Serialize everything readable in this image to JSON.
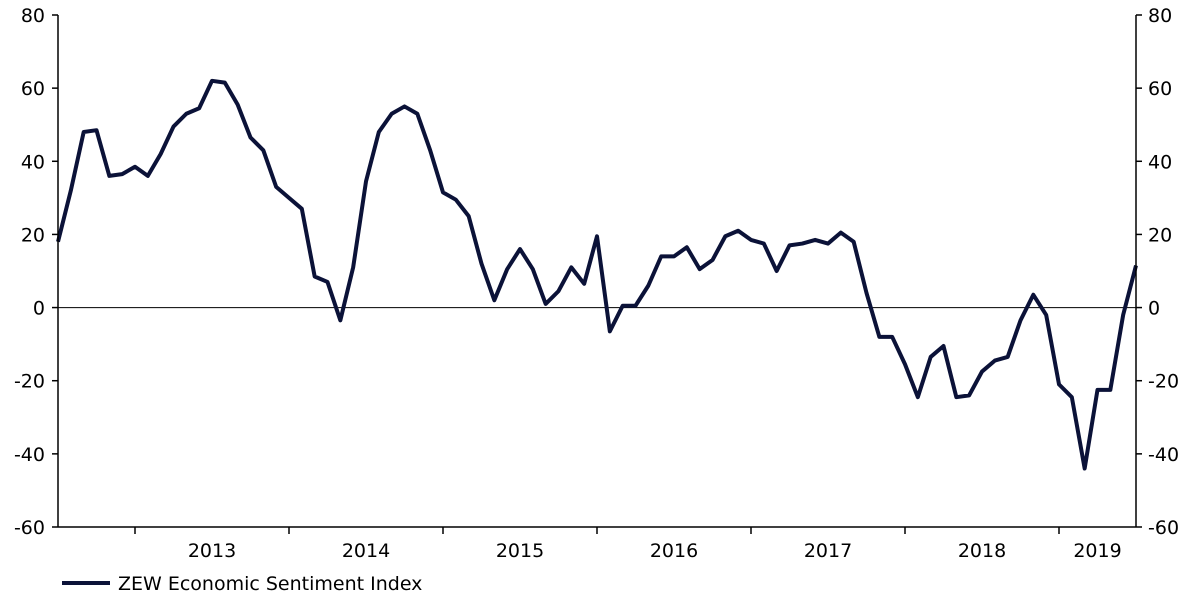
{
  "chart_data": {
    "type": "line",
    "title": "",
    "xlabel": "",
    "ylabel": "",
    "ylim": [
      -60,
      80
    ],
    "y_ticks": [
      80,
      60,
      40,
      20,
      0,
      -20,
      -40,
      -60
    ],
    "x_range": [
      "2012-07",
      "2019-07"
    ],
    "year_labels": [
      "2013",
      "2014",
      "2015",
      "2016",
      "2017",
      "2018",
      "2019"
    ],
    "zero_line": true,
    "grid": false,
    "legend_position": "bottom-left",
    "colors": {
      "series": "#0b1238",
      "axis": "#000000"
    },
    "series": [
      {
        "name": "ZEW Economic Sentiment Index",
        "points": [
          [
            "2012-07",
            18
          ],
          [
            "2012-08",
            32
          ],
          [
            "2012-09",
            48
          ],
          [
            "2012-10",
            48.5
          ],
          [
            "2012-11",
            36
          ],
          [
            "2012-12",
            36.5
          ],
          [
            "2013-01",
            38.5
          ],
          [
            "2013-02",
            36
          ],
          [
            "2013-03",
            42
          ],
          [
            "2013-04",
            49.5
          ],
          [
            "2013-05",
            53
          ],
          [
            "2013-06",
            54.5
          ],
          [
            "2013-07",
            62
          ],
          [
            "2013-08",
            61.5
          ],
          [
            "2013-09",
            55.5
          ],
          [
            "2013-10",
            46.5
          ],
          [
            "2013-11",
            43
          ],
          [
            "2013-12",
            33
          ],
          [
            "2014-01",
            30
          ],
          [
            "2014-02",
            27
          ],
          [
            "2014-03",
            8.5
          ],
          [
            "2014-04",
            7
          ],
          [
            "2014-05",
            -3.5
          ],
          [
            "2014-06",
            11
          ],
          [
            "2014-07",
            34.5
          ],
          [
            "2014-08",
            48
          ],
          [
            "2014-09",
            53
          ],
          [
            "2014-10",
            55
          ],
          [
            "2014-11",
            53
          ],
          [
            "2014-12",
            43
          ],
          [
            "2015-01",
            31.5
          ],
          [
            "2015-02",
            29.5
          ],
          [
            "2015-03",
            25
          ],
          [
            "2015-04",
            12
          ],
          [
            "2015-05",
            2
          ],
          [
            "2015-06",
            10.5
          ],
          [
            "2015-07",
            16
          ],
          [
            "2015-08",
            10.5
          ],
          [
            "2015-09",
            1
          ],
          [
            "2015-10",
            4.5
          ],
          [
            "2015-11",
            11
          ],
          [
            "2015-12",
            6.5
          ],
          [
            "2016-01",
            19.5
          ],
          [
            "2016-02",
            -6.5
          ],
          [
            "2016-03",
            0.5
          ],
          [
            "2016-04",
            0.5
          ],
          [
            "2016-05",
            6
          ],
          [
            "2016-06",
            14
          ],
          [
            "2016-07",
            14
          ],
          [
            "2016-08",
            16.5
          ],
          [
            "2016-09",
            10.5
          ],
          [
            "2016-10",
            13
          ],
          [
            "2016-11",
            19.5
          ],
          [
            "2016-12",
            21
          ],
          [
            "2017-01",
            18.5
          ],
          [
            "2017-02",
            17.5
          ],
          [
            "2017-03",
            10
          ],
          [
            "2017-04",
            17
          ],
          [
            "2017-05",
            17.5
          ],
          [
            "2017-06",
            18.5
          ],
          [
            "2017-07",
            17.5
          ],
          [
            "2017-08",
            20.5
          ],
          [
            "2017-09",
            18
          ],
          [
            "2017-10",
            4
          ],
          [
            "2017-11",
            -8
          ],
          [
            "2017-12",
            -8
          ],
          [
            "2018-01",
            -15.5
          ],
          [
            "2018-02",
            -24.5
          ],
          [
            "2018-03",
            -13.5
          ],
          [
            "2018-04",
            -10.5
          ],
          [
            "2018-05",
            -24.5
          ],
          [
            "2018-06",
            -24
          ],
          [
            "2018-07",
            -17.5
          ],
          [
            "2018-08",
            -14.5
          ],
          [
            "2018-09",
            -13.5
          ],
          [
            "2018-10",
            -3.5
          ],
          [
            "2018-11",
            3.5
          ],
          [
            "2018-12",
            -2
          ],
          [
            "2019-01",
            -21
          ],
          [
            "2019-02",
            -24.5
          ],
          [
            "2019-03",
            -44
          ],
          [
            "2019-04",
            -22.5
          ],
          [
            "2019-05",
            -22.5
          ],
          [
            "2019-06",
            -2
          ],
          [
            "2019-07",
            11.5
          ]
        ]
      }
    ]
  }
}
